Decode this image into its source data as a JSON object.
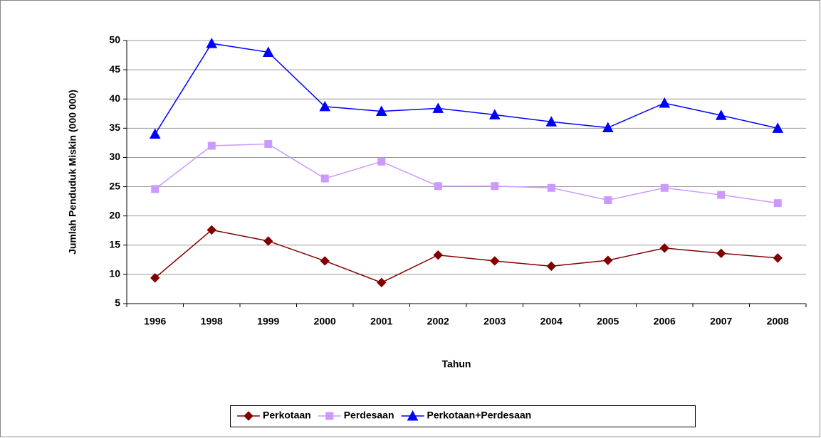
{
  "chart_data": {
    "type": "line",
    "x_label": "Tahun",
    "y_label": "Jumlah Penduduk Miskin (000 000)",
    "categories": [
      "1996",
      "1998",
      "1999",
      "2000",
      "2001",
      "2002",
      "2003",
      "2004",
      "2005",
      "2006",
      "2007",
      "2008"
    ],
    "series": [
      {
        "name": "Perkotaan",
        "color": "#800000",
        "marker": "diamond",
        "values": [
          9.4,
          17.6,
          15.7,
          12.3,
          8.6,
          13.3,
          12.3,
          11.4,
          12.4,
          14.5,
          13.6,
          12.8
        ]
      },
      {
        "name": "Perdesaan",
        "color": "#cc99ff",
        "marker": "square",
        "values": [
          24.6,
          32.0,
          32.3,
          26.4,
          29.3,
          25.1,
          25.1,
          24.8,
          22.7,
          24.8,
          23.6,
          22.2
        ]
      },
      {
        "name": "Perkotaan+Perdesaan",
        "color": "#0000ff",
        "marker": "triangle",
        "values": [
          34.0,
          49.5,
          48.0,
          38.7,
          37.9,
          38.4,
          37.3,
          36.1,
          35.1,
          39.3,
          37.2,
          35.0
        ]
      }
    ],
    "ylim": [
      5,
      50
    ],
    "yticks": [
      5,
      10,
      15,
      20,
      25,
      30,
      35,
      40,
      45,
      50
    ],
    "grid": true,
    "legend": "bottom"
  }
}
